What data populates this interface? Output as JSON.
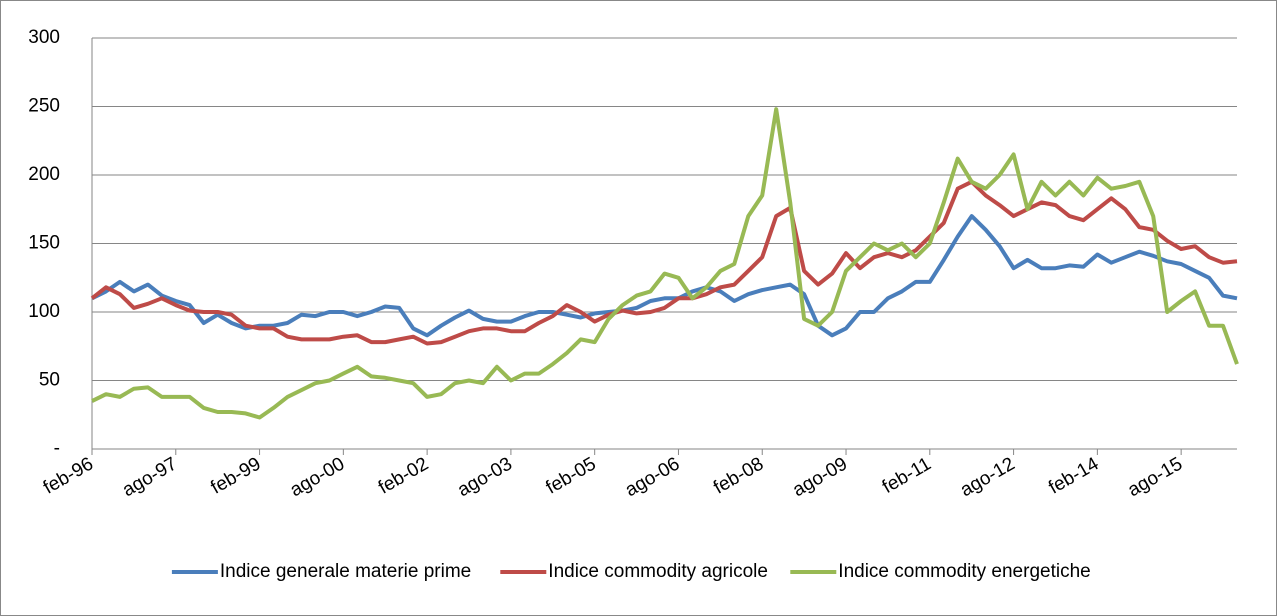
{
  "chart_data": {
    "type": "line",
    "categories": [
      "feb-96",
      null,
      null,
      null,
      null,
      null,
      "ago-97",
      null,
      null,
      null,
      null,
      null,
      "feb-99",
      null,
      null,
      null,
      null,
      null,
      "ago-00",
      null,
      null,
      null,
      null,
      null,
      "feb-02",
      null,
      null,
      null,
      null,
      null,
      "ago-03",
      null,
      null,
      null,
      null,
      null,
      "feb-05",
      null,
      null,
      null,
      null,
      null,
      "ago-06",
      null,
      null,
      null,
      null,
      null,
      "feb-08",
      null,
      null,
      null,
      null,
      null,
      "ago-09",
      null,
      null,
      null,
      null,
      null,
      "feb-11",
      null,
      null,
      null,
      null,
      null,
      "ago-12",
      null,
      null,
      null,
      null,
      null,
      "feb-14",
      null,
      null,
      null,
      null,
      null,
      "ago-15",
      null,
      null,
      null,
      null
    ],
    "series": [
      {
        "name": "Indice generale materie prime",
        "color": "#4a7ebb",
        "values": [
          110,
          115,
          122,
          115,
          120,
          112,
          108,
          105,
          92,
          98,
          92,
          88,
          90,
          90,
          92,
          98,
          97,
          100,
          100,
          97,
          100,
          104,
          103,
          88,
          83,
          90,
          96,
          101,
          95,
          93,
          93,
          97,
          100,
          100,
          98,
          96,
          99,
          100,
          101,
          103,
          108,
          110,
          110,
          115,
          118,
          115,
          108,
          113,
          116,
          118,
          120,
          113,
          90,
          83,
          88,
          100,
          100,
          110,
          115,
          122,
          122,
          138,
          155,
          170,
          160,
          148,
          132,
          138,
          132,
          132,
          134,
          133,
          142,
          136,
          140,
          144,
          141,
          137,
          135,
          130,
          125,
          112,
          110
        ]
      },
      {
        "name": "Indice commodity agricole",
        "color": "#be4b48",
        "values": [
          110,
          118,
          113,
          103,
          106,
          110,
          105,
          101,
          100,
          100,
          98,
          90,
          88,
          88,
          82,
          80,
          80,
          80,
          82,
          83,
          78,
          78,
          80,
          82,
          77,
          78,
          82,
          86,
          88,
          88,
          86,
          86,
          92,
          97,
          105,
          100,
          93,
          98,
          101,
          99,
          100,
          103,
          110,
          110,
          113,
          118,
          120,
          130,
          140,
          170,
          176,
          130,
          120,
          128,
          143,
          132,
          140,
          143,
          140,
          145,
          155,
          165,
          190,
          195,
          185,
          178,
          170,
          175,
          180,
          178,
          170,
          167,
          175,
          183,
          175,
          162,
          160,
          152,
          146,
          148,
          140,
          136,
          137
        ]
      },
      {
        "name": "Indice commodity energetiche",
        "color": "#98b954",
        "values": [
          35,
          40,
          38,
          44,
          45,
          38,
          38,
          38,
          30,
          27,
          27,
          26,
          23,
          30,
          38,
          43,
          48,
          50,
          55,
          60,
          53,
          52,
          50,
          48,
          38,
          40,
          48,
          50,
          48,
          60,
          50,
          55,
          55,
          62,
          70,
          80,
          78,
          95,
          105,
          112,
          115,
          128,
          125,
          110,
          118,
          130,
          135,
          170,
          185,
          248,
          180,
          95,
          90,
          100,
          130,
          140,
          150,
          145,
          150,
          140,
          150,
          180,
          212,
          195,
          190,
          200,
          215,
          175,
          195,
          185,
          195,
          185,
          198,
          190,
          192,
          195,
          170,
          100,
          108,
          115,
          90,
          90,
          62
        ]
      }
    ],
    "ylim": [
      0,
      300
    ],
    "yticks": [
      {
        "value": 0,
        "label": "-"
      },
      50,
      100,
      150,
      200,
      250,
      300
    ],
    "grid": true
  }
}
